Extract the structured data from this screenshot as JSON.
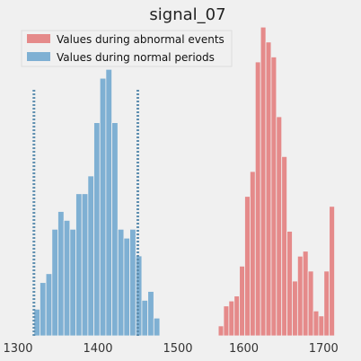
{
  "chart_data": {
    "type": "histogram",
    "title": "signal_07",
    "legend": {
      "placement": "top-left",
      "entries": [
        {
          "label": "Values during abnormal events",
          "color": "#e58a8a"
        },
        {
          "label": "Values during normal periods",
          "color": "#7fb0d3"
        }
      ]
    },
    "grid": false,
    "y_ticks_visible": false,
    "panels": [
      {
        "name": "left",
        "xlim": [
          1300,
          1500
        ],
        "x_ticks": [
          1300,
          1400,
          1500
        ],
        "ylim": [
          0,
          37
        ],
        "bins_normal": {
          "start": 1320,
          "width": 7.5,
          "counts": [
            3,
            6,
            7,
            12,
            14,
            13,
            12,
            16,
            16,
            18,
            24,
            29,
            30,
            24,
            12,
            11,
            12,
            9,
            4,
            5,
            2
          ]
        },
        "threshold_lines": [
          1320,
          1450
        ]
      },
      {
        "name": "right",
        "xlim": [
          1560,
          1720
        ],
        "x_ticks": [
          1600,
          1700
        ],
        "ylim": [
          0,
          66
        ],
        "bins_abnormal": {
          "start": 1568,
          "width": 6.63,
          "counts": [
            2,
            6,
            7,
            8,
            14,
            28,
            33,
            55,
            62,
            59,
            56,
            44,
            36,
            21,
            11,
            16,
            17,
            13,
            5,
            4,
            13,
            26
          ]
        }
      }
    ]
  },
  "colors": {
    "background": "#f0f0f0",
    "normal_bar": "#7fb0d3",
    "abnormal_bar": "#e58a8a",
    "bar_edge": "#f0f0f0",
    "threshold_line": "#5f8fb0"
  }
}
